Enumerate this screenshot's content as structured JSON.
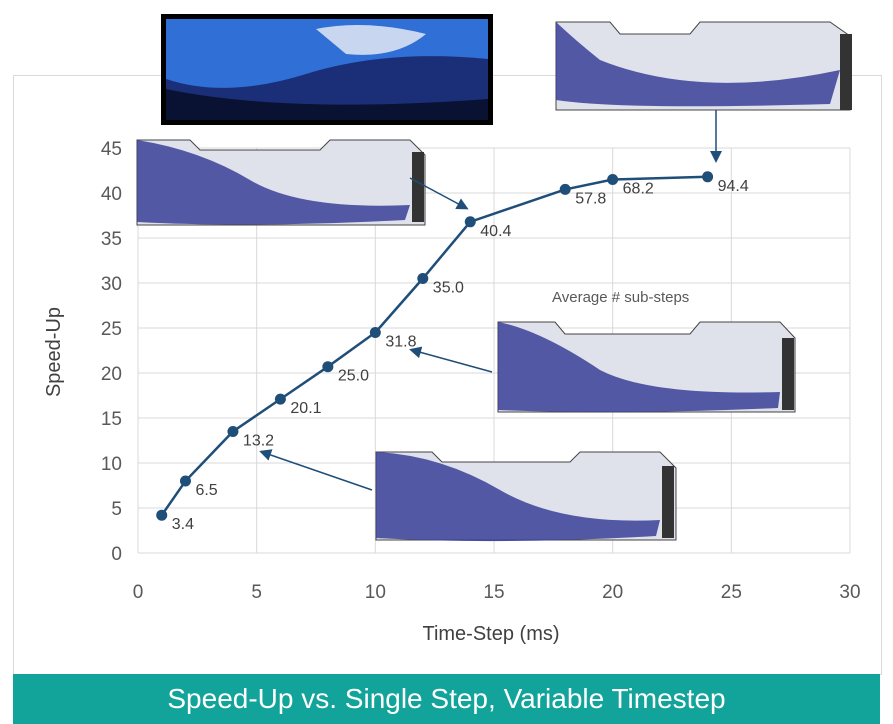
{
  "banner": {
    "title": "Speed-Up vs. Single Step, Variable Timestep"
  },
  "colors": {
    "line": "#1f4e79",
    "banner": "#12a39a",
    "tank": "#3b3f99",
    "liquid_light": "#dfe2ea"
  },
  "chart_data": {
    "type": "line",
    "xlabel": "Time-Step (ms)",
    "ylabel": "Speed-Up",
    "xlim": [
      0,
      30
    ],
    "ylim": [
      0,
      45
    ],
    "xticks": [
      0,
      5,
      10,
      15,
      20,
      25,
      30
    ],
    "yticks": [
      0,
      5,
      10,
      15,
      20,
      25,
      30,
      35,
      40,
      45
    ],
    "grid": true,
    "annotation": "Average # sub-steps",
    "series": [
      {
        "x": [
          1,
          2,
          4,
          6,
          8,
          10,
          12,
          14,
          18,
          20,
          24
        ],
        "values": [
          4.2,
          8.0,
          13.5,
          17.1,
          20.7,
          24.5,
          30.5,
          36.8,
          40.4,
          41.5,
          41.8
        ],
        "point_labels": [
          "3.4",
          "6.5",
          "13.2",
          "20.1",
          "25.0",
          "31.8",
          "35.0",
          "40.4",
          "57.8",
          "68.2",
          "94.4"
        ]
      }
    ]
  }
}
